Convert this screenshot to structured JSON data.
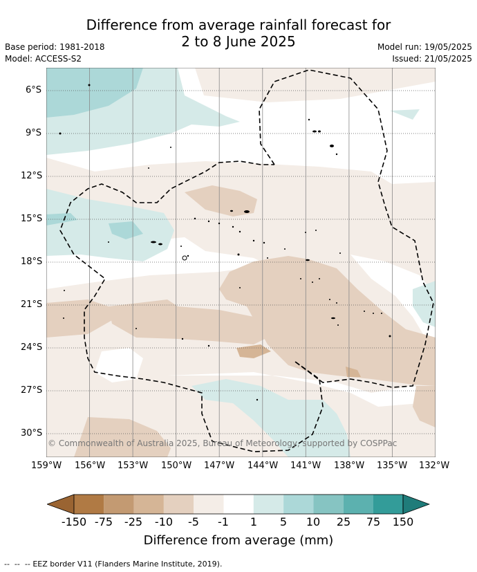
{
  "title": {
    "line1": "Difference from average rainfall forecast for",
    "line2": "2 to 8 June 2025"
  },
  "meta_left": {
    "base_period": "Base period: 1981-2018",
    "model": "Model: ACCESS-S2"
  },
  "meta_right": {
    "model_run": "Model run: 19/05/2025",
    "issued": "Issued: 21/05/2025"
  },
  "map": {
    "lat_ticks": [
      "6°S",
      "9°S",
      "12°S",
      "15°S",
      "18°S",
      "21°S",
      "24°S",
      "27°S",
      "30°S"
    ],
    "lon_ticks": [
      "159°W",
      "156°W",
      "153°W",
      "150°W",
      "147°W",
      "144°W",
      "141°W",
      "138°W",
      "135°W",
      "132°W"
    ],
    "copyright": "© Commonwealth of Australia 2025, Bureau of Meteorology, supported by COSPPac",
    "land_color": "#000000",
    "eez_line_style": "dashed"
  },
  "colorbar": {
    "labels": [
      "-150",
      "-75",
      "-25",
      "-10",
      "-5",
      "-1",
      "1",
      "5",
      "10",
      "25",
      "75",
      "150"
    ],
    "colors": [
      "#b07a44",
      "#c39a72",
      "#d5b596",
      "#e4d0bf",
      "#f4ede7",
      "#ffffff",
      "#d5eae8",
      "#acd8d8",
      "#86c4c2",
      "#5cb1af",
      "#339c99"
    ],
    "under_color": "#9a6432",
    "over_color": "#1f7c7a",
    "title": "Difference from average (mm)"
  },
  "footer": {
    "legend_text": "EEZ border V11 (Flanders Marine Institute, 2019)."
  }
}
